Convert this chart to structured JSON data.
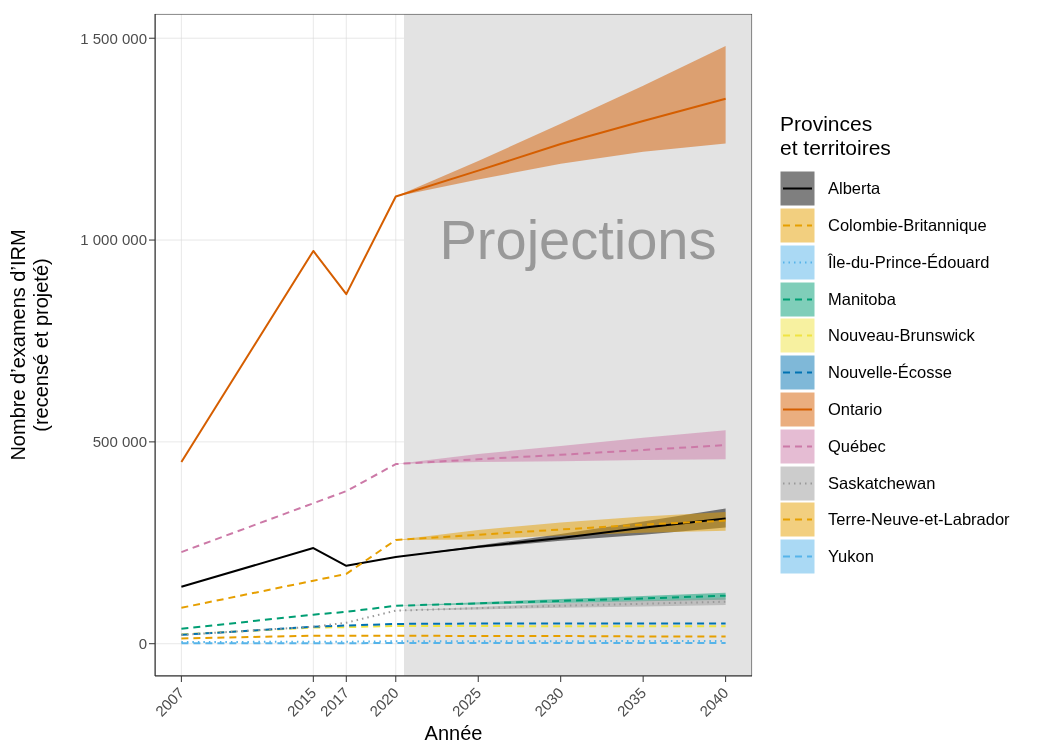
{
  "chart_data": {
    "type": "line",
    "xlabel": "Année",
    "ylabel": "Nombre d’examens d’IRM\n(recensé et projeté)",
    "legend_title": "Provinces\net territoires",
    "x": [
      2007,
      2015,
      2017,
      2020,
      2025,
      2030,
      2035,
      2040
    ],
    "xlim": [
      2005.4,
      2041.6
    ],
    "xticks": [
      2007,
      2015,
      2017,
      2020,
      2025,
      2030,
      2035,
      2040
    ],
    "ylim": [
      -80000,
      1560000
    ],
    "yticks": [
      {
        "value": 0,
        "label": "0"
      },
      {
        "value": 500000,
        "label": "500 000"
      },
      {
        "value": 1000000,
        "label": "1 000 000"
      },
      {
        "value": 1500000,
        "label": "1 500 000"
      }
    ],
    "grid": true,
    "legend": "right",
    "bands": [
      {
        "axis": "x",
        "from": 2020.5,
        "to": 2041.6,
        "label": "Projections",
        "color": "#e3e3e3"
      }
    ],
    "series": [
      {
        "name": "Alberta",
        "color": "#000000",
        "line_style": "solid",
        "values": [
          141000,
          237000,
          193000,
          215000,
          240000,
          262000,
          287000,
          310000
        ],
        "lower": [
          null,
          null,
          null,
          215000,
          237000,
          255000,
          270000,
          288000
        ],
        "upper": [
          null,
          null,
          null,
          215000,
          243000,
          272000,
          303000,
          335000
        ]
      },
      {
        "name": "Colombie-Britannique",
        "color": "#e69f00",
        "line_style": "dashed",
        "values": [
          89000,
          156000,
          173000,
          257000,
          270000,
          283000,
          295000,
          305000
        ],
        "lower": [
          null,
          null,
          null,
          257000,
          258000,
          268000,
          275000,
          280000
        ],
        "upper": [
          null,
          null,
          null,
          257000,
          282000,
          300000,
          315000,
          326000
        ]
      },
      {
        "name": "Île-du-Prince-Édouard",
        "color": "#56b4e9",
        "line_style": "dotted",
        "values": [
          4000,
          5000,
          5000,
          6000,
          6000,
          6000,
          7000,
          7000
        ]
      },
      {
        "name": "Manitoba",
        "color": "#009e73",
        "line_style": "dashed",
        "values": [
          37000,
          72000,
          79000,
          94000,
          100000,
          106000,
          112000,
          119000
        ],
        "lower": [
          null,
          null,
          null,
          94000,
          97000,
          101000,
          105000,
          109000
        ],
        "upper": [
          null,
          null,
          null,
          94000,
          103000,
          111000,
          118000,
          126000
        ]
      },
      {
        "name": "Nouveau-Brunswick",
        "color": "#f0e442",
        "line_style": "dashed",
        "values": [
          23000,
          40000,
          41000,
          44000,
          44000,
          43000,
          43000,
          43000
        ]
      },
      {
        "name": "Nouvelle-Écosse",
        "color": "#0072b2",
        "line_style": "dashed",
        "values": [
          22000,
          42000,
          45000,
          49000,
          50000,
          50000,
          50000,
          50000
        ]
      },
      {
        "name": "Ontario",
        "color": "#d55e00",
        "line_style": "solid",
        "values": [
          450000,
          973000,
          866000,
          1108000,
          1172000,
          1238000,
          1295000,
          1350000
        ],
        "lower": [
          null,
          null,
          null,
          1108000,
          1150000,
          1189000,
          1219000,
          1239000
        ],
        "upper": [
          null,
          null,
          null,
          1108000,
          1196000,
          1288000,
          1382000,
          1481000
        ]
      },
      {
        "name": "Québec",
        "color": "#cc79a7",
        "line_style": "dashed",
        "values": [
          227000,
          348000,
          378000,
          445000,
          457000,
          468000,
          480000,
          492000
        ],
        "lower": [
          null,
          null,
          null,
          445000,
          450000,
          452000,
          455000,
          457000
        ],
        "upper": [
          null,
          null,
          null,
          445000,
          470000,
          490000,
          510000,
          529000
        ]
      },
      {
        "name": "Saskatchewan",
        "color": "#999999",
        "line_style": "dotted",
        "values": [
          22000,
          42000,
          52000,
          82000,
          88000,
          94000,
          99000,
          104000
        ],
        "lower": [
          null,
          null,
          null,
          82000,
          85000,
          89000,
          92000,
          96000
        ],
        "upper": [
          null,
          null,
          null,
          82000,
          91000,
          100000,
          107000,
          114000
        ]
      },
      {
        "name": "Terre-Neuve-et-Labrador",
        "color": "#e69f00",
        "line_style": "dashed",
        "values": [
          13000,
          20000,
          20000,
          20000,
          19000,
          19000,
          18000,
          18000
        ]
      },
      {
        "name": "Yukon",
        "color": "#56b4e9",
        "line_style": "dashed",
        "values": [
          1000,
          1000,
          1000,
          2000,
          2000,
          2000,
          2000,
          2000
        ]
      }
    ]
  }
}
